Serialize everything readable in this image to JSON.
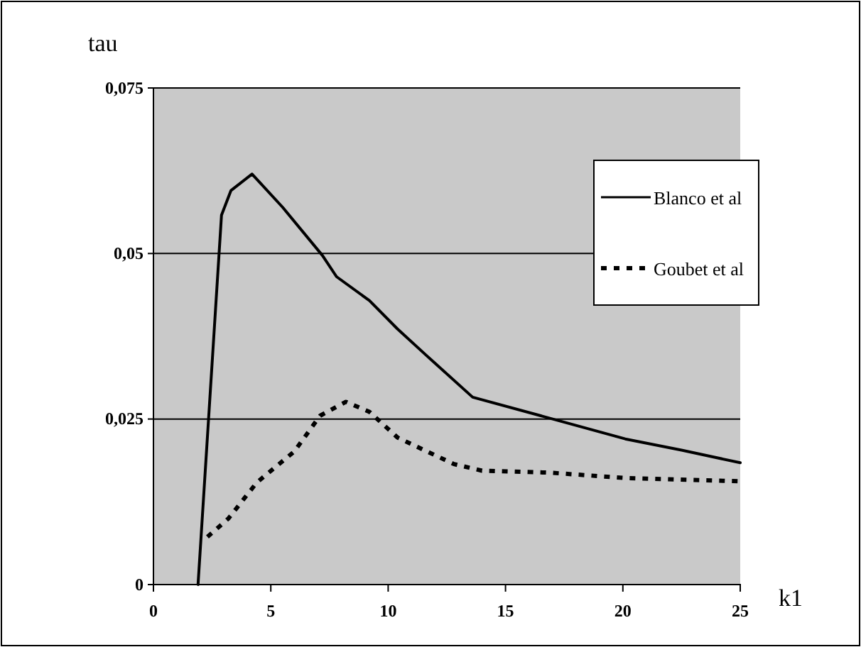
{
  "chart_data": {
    "type": "line",
    "xlabel": "k1",
    "ylabel": "tau",
    "xlim": [
      0,
      25
    ],
    "xticks": [
      0,
      5,
      10,
      15,
      20,
      25
    ],
    "ylim": [
      0,
      0.075
    ],
    "yticks": [
      0,
      {
        "value": 0.025,
        "label": "0,025"
      },
      {
        "value": 0.05,
        "label": "0,05"
      },
      {
        "value": 0.075,
        "label": "0,075"
      }
    ],
    "grid": "y",
    "legend": "right",
    "series": [
      {
        "name": "Blanco et al",
        "color": "#000000",
        "line_style": "solid",
        "x": [
          1.9,
          2.9,
          3.3,
          4.2,
          5.5,
          7.2,
          7.8,
          9.2,
          10.4,
          11.6,
          13.6,
          16.5,
          20.1,
          22.5,
          25
        ],
        "values": [
          0,
          0.0558,
          0.0595,
          0.062,
          0.057,
          0.0497,
          0.0465,
          0.0429,
          0.0386,
          0.0347,
          0.0283,
          0.0255,
          0.022,
          0.0203,
          0.0184
        ]
      },
      {
        "name": "Goubet et al",
        "color": "#000000",
        "line_style": "dotted",
        "x": [
          2.3,
          3.2,
          4.4,
          6.0,
          7.1,
          8.2,
          9.2,
          10.4,
          12.8,
          14.0,
          16.9,
          20.1,
          25
        ],
        "values": [
          0.0072,
          0.01,
          0.0154,
          0.0201,
          0.0255,
          0.0276,
          0.0261,
          0.0222,
          0.0182,
          0.0172,
          0.0169,
          0.0161,
          0.0156
        ]
      }
    ]
  }
}
